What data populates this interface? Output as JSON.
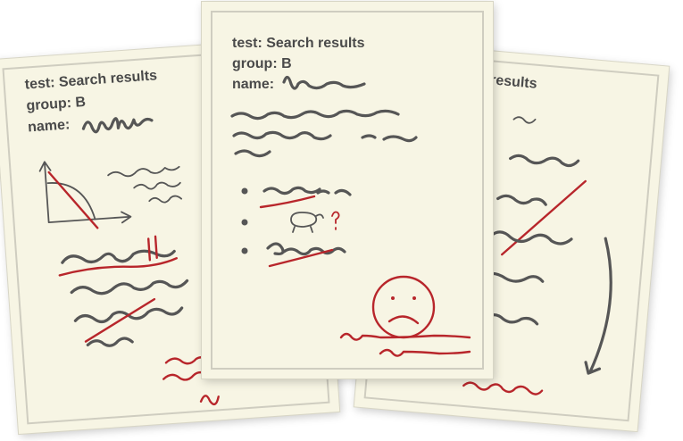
{
  "sheets": [
    {
      "test_label": "test: Search results",
      "group_label": "group: B",
      "name_label": "name:"
    },
    {
      "test_label": "test: Search results",
      "group_label": "group: B",
      "name_label": "name:"
    },
    {
      "test_label": "results"
    }
  ],
  "colors": {
    "paper": "#f7f5e4",
    "ink": "#565656",
    "red_ink": "#b8262b",
    "frame": "#cfcdc0"
  }
}
